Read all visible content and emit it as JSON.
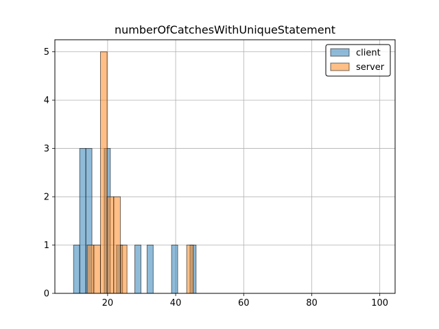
{
  "chart_data": {
    "type": "bar",
    "title": "numberOfCatchesWithUniqueStatement",
    "xlabel": "",
    "ylabel": "",
    "xlim": [
      4.5,
      104.5
    ],
    "ylim": [
      0,
      5.25
    ],
    "xticks": [
      20,
      40,
      60,
      80,
      100
    ],
    "yticks": [
      0,
      1,
      2,
      3,
      4,
      5
    ],
    "grid": true,
    "legend_position": "top-right",
    "series": [
      {
        "name": "client",
        "color": "#1f77b4",
        "bins": [
          {
            "x0": 10.0,
            "x1": 11.8,
            "count": 1
          },
          {
            "x0": 11.8,
            "x1": 13.6,
            "count": 3
          },
          {
            "x0": 13.6,
            "x1": 15.4,
            "count": 3
          },
          {
            "x0": 15.4,
            "x1": 17.2,
            "count": 0
          },
          {
            "x0": 17.2,
            "x1": 19.0,
            "count": 0
          },
          {
            "x0": 19.0,
            "x1": 20.8,
            "count": 3
          },
          {
            "x0": 20.8,
            "x1": 22.6,
            "count": 0
          },
          {
            "x0": 22.6,
            "x1": 24.4,
            "count": 1
          },
          {
            "x0": 24.4,
            "x1": 26.2,
            "count": 0
          },
          {
            "x0": 26.2,
            "x1": 28.0,
            "count": 0
          },
          {
            "x0": 28.0,
            "x1": 29.8,
            "count": 1
          },
          {
            "x0": 29.8,
            "x1": 31.6,
            "count": 0
          },
          {
            "x0": 31.6,
            "x1": 33.4,
            "count": 1
          },
          {
            "x0": 33.4,
            "x1": 35.2,
            "count": 0
          },
          {
            "x0": 35.2,
            "x1": 37.0,
            "count": 0
          },
          {
            "x0": 37.0,
            "x1": 38.8,
            "count": 0
          },
          {
            "x0": 38.8,
            "x1": 40.6,
            "count": 1
          },
          {
            "x0": 40.6,
            "x1": 42.4,
            "count": 0
          },
          {
            "x0": 42.4,
            "x1": 44.2,
            "count": 0
          },
          {
            "x0": 44.2,
            "x1": 46.0,
            "count": 1
          }
        ]
      },
      {
        "name": "server",
        "color": "#ff7f0e",
        "bins": [
          {
            "x0": 14.0,
            "x1": 15.95,
            "count": 1
          },
          {
            "x0": 15.95,
            "x1": 17.9,
            "count": 1
          },
          {
            "x0": 17.9,
            "x1": 19.85,
            "count": 5
          },
          {
            "x0": 19.85,
            "x1": 21.8,
            "count": 2
          },
          {
            "x0": 21.8,
            "x1": 23.75,
            "count": 2
          },
          {
            "x0": 23.75,
            "x1": 25.7,
            "count": 1
          },
          {
            "x0": 25.7,
            "x1": 27.65,
            "count": 0
          },
          {
            "x0": 27.65,
            "x1": 29.6,
            "count": 0
          },
          {
            "x0": 29.6,
            "x1": 31.55,
            "count": 0
          },
          {
            "x0": 31.55,
            "x1": 33.5,
            "count": 0
          },
          {
            "x0": 33.5,
            "x1": 35.45,
            "count": 0
          },
          {
            "x0": 35.45,
            "x1": 37.4,
            "count": 0
          },
          {
            "x0": 37.4,
            "x1": 39.35,
            "count": 0
          },
          {
            "x0": 39.35,
            "x1": 41.3,
            "count": 0
          },
          {
            "x0": 41.3,
            "x1": 43.25,
            "count": 0
          },
          {
            "x0": 43.25,
            "x1": 45.2,
            "count": 1
          }
        ]
      }
    ]
  }
}
